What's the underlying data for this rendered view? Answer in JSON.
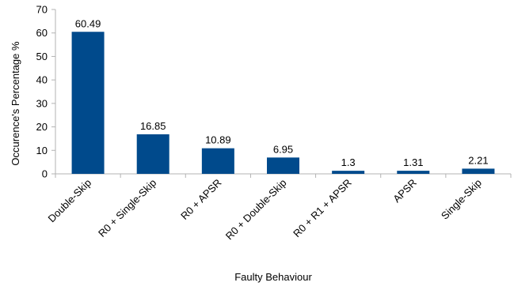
{
  "chart_data": {
    "type": "bar",
    "categories": [
      "Double-Skip",
      "R0 + Single-Skip",
      "R0 + APSR",
      "R0  + Double-Skip",
      "R0 + R1 + APSR",
      "APSR",
      "Single-Skip"
    ],
    "values": [
      60.49,
      16.85,
      10.89,
      6.95,
      1.3,
      1.31,
      2.21
    ],
    "data_labels": [
      "60.49",
      "16.85",
      "10.89",
      "6.95",
      "1.3",
      "1.31",
      "2.21"
    ],
    "xlabel": "Faulty Behaviour",
    "ylabel": "Occurence's Percentage %",
    "ylim": [
      0,
      70
    ],
    "yticks": [
      0,
      10,
      20,
      30,
      40,
      50,
      60,
      70
    ],
    "grid": false,
    "legend": "none",
    "bar_color": "#004a8c",
    "axis_color": "#b3b3b3"
  }
}
